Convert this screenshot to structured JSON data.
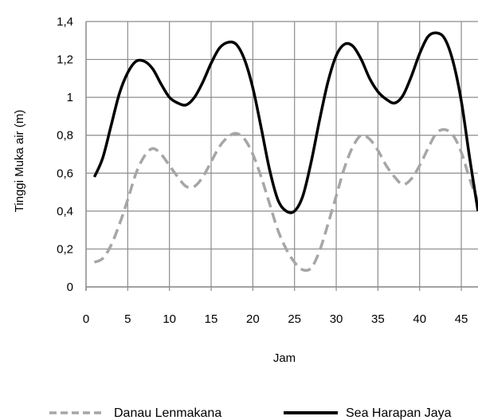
{
  "chart_data": {
    "type": "line",
    "xlabel": "Jam",
    "ylabel": "Tinggi Muka air (m)",
    "xlim": [
      0,
      47
    ],
    "ylim": [
      0,
      1.4
    ],
    "x_ticks": [
      0,
      5,
      10,
      15,
      20,
      25,
      30,
      35,
      40,
      45
    ],
    "y_ticks": [
      0,
      0.2,
      0.4,
      0.6,
      0.8,
      1,
      1.2,
      1.4
    ],
    "y_tick_labels": [
      "0",
      "0,2",
      "0,4",
      "0,6",
      "0,8",
      "1",
      "1,2",
      "1,4"
    ],
    "grid": true,
    "legend_position": "bottom",
    "series": [
      {
        "name": "Danau Lenmakana",
        "color": "#a6a6a6",
        "style": "dashed",
        "x": [
          1,
          2,
          3,
          4,
          5,
          6,
          7,
          8,
          9,
          10,
          11,
          12,
          13,
          14,
          15,
          16,
          17,
          18,
          19,
          20,
          21,
          22,
          23,
          24,
          25,
          26,
          27,
          28,
          29,
          30,
          31,
          32,
          33,
          34,
          35,
          36,
          37,
          38,
          39,
          40,
          41,
          42,
          43,
          44,
          45,
          46,
          47
        ],
        "values": [
          0.13,
          0.15,
          0.22,
          0.33,
          0.46,
          0.6,
          0.69,
          0.73,
          0.7,
          0.64,
          0.58,
          0.53,
          0.53,
          0.58,
          0.66,
          0.74,
          0.79,
          0.81,
          0.78,
          0.7,
          0.58,
          0.44,
          0.3,
          0.2,
          0.13,
          0.09,
          0.1,
          0.19,
          0.33,
          0.48,
          0.63,
          0.74,
          0.8,
          0.78,
          0.72,
          0.64,
          0.58,
          0.54,
          0.57,
          0.64,
          0.73,
          0.81,
          0.83,
          0.8,
          0.71,
          0.57,
          0.45
        ]
      },
      {
        "name": "Sea Harapan Jaya",
        "color": "#000000",
        "style": "solid",
        "x": [
          1,
          2,
          3,
          4,
          5,
          6,
          7,
          8,
          9,
          10,
          11,
          12,
          13,
          14,
          15,
          16,
          17,
          18,
          19,
          20,
          21,
          22,
          23,
          24,
          25,
          26,
          27,
          28,
          29,
          30,
          31,
          32,
          33,
          34,
          35,
          36,
          37,
          38,
          39,
          40,
          41,
          42,
          43,
          44,
          45,
          46,
          47
        ],
        "values": [
          0.58,
          0.68,
          0.85,
          1.02,
          1.13,
          1.19,
          1.19,
          1.15,
          1.07,
          1.0,
          0.97,
          0.96,
          1.0,
          1.08,
          1.18,
          1.26,
          1.29,
          1.28,
          1.2,
          1.05,
          0.84,
          0.62,
          0.46,
          0.4,
          0.4,
          0.48,
          0.66,
          0.88,
          1.08,
          1.22,
          1.28,
          1.27,
          1.2,
          1.1,
          1.03,
          0.99,
          0.97,
          1.01,
          1.11,
          1.23,
          1.32,
          1.34,
          1.31,
          1.19,
          0.98,
          0.68,
          0.4
        ]
      }
    ]
  }
}
